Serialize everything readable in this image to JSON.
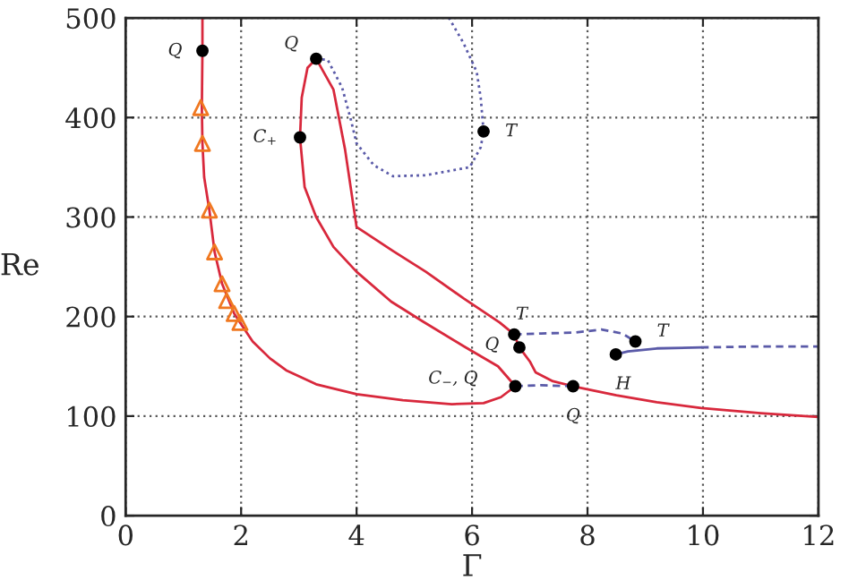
{
  "chart_data": {
    "type": "line",
    "xlabel": "Γ",
    "ylabel": "Re",
    "xlim": [
      0,
      12
    ],
    "xticks": [
      0,
      2,
      4,
      6,
      8,
      10,
      12
    ],
    "ylim": [
      0,
      500
    ],
    "yticks": [
      0,
      100,
      200,
      300,
      400,
      500
    ],
    "grid": true,
    "series": [
      {
        "color": "#d8283c",
        "line_style": "solid",
        "x": [
          1.33,
          1.33,
          1.32,
          1.33,
          1.36,
          1.45,
          1.54,
          1.67,
          1.79,
          1.88,
          1.98,
          2.2,
          2.5,
          2.78,
          3.3,
          4.0,
          4.8,
          5.65,
          6.2,
          6.5,
          6.75
        ],
        "values": [
          500,
          467,
          410,
          374,
          340,
          307,
          265,
          233,
          216,
          203,
          194,
          175,
          158,
          146,
          132,
          122,
          116,
          112,
          113,
          119,
          130
        ]
      },
      {
        "color": "#d8283c",
        "line_style": "solid",
        "x": [
          6.75,
          6.45,
          5.86,
          5.15,
          4.6,
          4.0,
          3.6,
          3.3,
          3.1,
          3.02,
          3.05,
          3.15,
          3.3,
          3.6,
          3.8,
          4.0,
          4.63,
          5.2,
          5.86,
          6.48,
          6.73,
          6.82,
          7.0,
          7.1,
          7.4,
          7.75,
          8.5,
          9.2,
          9.97,
          11.0,
          12.0
        ],
        "values": [
          130,
          150,
          170,
          195,
          215,
          245,
          270,
          300,
          330,
          380,
          420,
          450,
          459,
          428,
          368,
          290,
          266,
          245,
          218,
          194,
          182,
          169,
          155,
          144,
          135,
          130,
          121,
          114,
          108,
          103,
          99
        ]
      },
      {
        "color": "#5a5aa8",
        "line_style": "dotted",
        "x": [
          3.3,
          3.5,
          3.75,
          3.9,
          4.0,
          4.3,
          4.63,
          5.2,
          5.96,
          6.15,
          6.2,
          6.15,
          6.08,
          5.85,
          5.6
        ],
        "values": [
          459,
          458,
          430,
          398,
          374,
          352,
          341,
          342,
          350,
          370,
          386,
          420,
          446,
          475,
          500
        ]
      },
      {
        "color": "#5a5aa8",
        "line_style": "dashed",
        "x": [
          6.73,
          7.2,
          7.8,
          8.24,
          8.6,
          8.83
        ],
        "values": [
          182,
          183,
          184,
          187,
          183,
          175
        ]
      },
      {
        "color": "#5a5aa8",
        "line_style": "solid",
        "x": [
          8.49,
          8.7,
          9.2,
          9.97
        ],
        "values": [
          162,
          165,
          168,
          169
        ]
      },
      {
        "color": "#5a5aa8",
        "line_style": "dashed",
        "x": [
          9.97,
          11.0,
          12.0
        ],
        "values": [
          169,
          170,
          170
        ]
      },
      {
        "color": "#5a5aa8",
        "line_style": "dashed",
        "x": [
          6.75,
          7.2,
          7.75
        ],
        "values": [
          130,
          131,
          130
        ]
      },
      {
        "type": "scatter",
        "color": "#f07820",
        "marker": "triangle",
        "x": [
          1.3,
          1.33,
          1.45,
          1.54,
          1.67,
          1.75,
          1.88,
          1.98
        ],
        "values": [
          410,
          374,
          307,
          265,
          233,
          216,
          203,
          194
        ]
      },
      {
        "type": "scatter",
        "color": "#000000",
        "marker": "circle",
        "x": [
          1.33,
          3.3,
          3.02,
          6.2,
          6.73,
          6.82,
          8.83,
          8.49,
          6.75,
          7.75
        ],
        "values": [
          467,
          459,
          380,
          386,
          182,
          169,
          175,
          162,
          130,
          130
        ]
      }
    ],
    "annotations": [
      {
        "text": "Q",
        "x": 1.33,
        "y": 467
      },
      {
        "text": "Q",
        "x": 3.3,
        "y": 459
      },
      {
        "text": "C$_{+}$",
        "x": 3.02,
        "y": 380
      },
      {
        "text": "T",
        "x": 6.2,
        "y": 386
      },
      {
        "text": "T",
        "x": 6.73,
        "y": 182
      },
      {
        "text": "Q",
        "x": 6.82,
        "y": 169
      },
      {
        "text": "T",
        "x": 8.83,
        "y": 175
      },
      {
        "text": "H",
        "x": 8.49,
        "y": 162
      },
      {
        "text": "C$_{−}$, Q",
        "x": 6.75,
        "y": 130
      },
      {
        "text": "Q",
        "x": 7.75,
        "y": 130
      }
    ]
  }
}
